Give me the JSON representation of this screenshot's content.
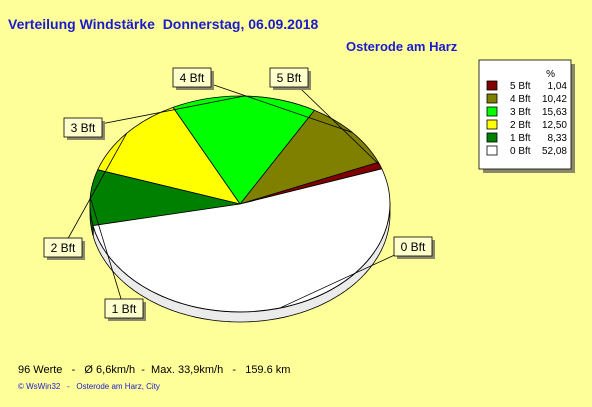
{
  "header": {
    "title": "Verteilung Windstärke  Donnerstag, 06.09.2018",
    "location": "Osterode am Harz"
  },
  "chart_data": {
    "type": "pie",
    "legend_header": "%",
    "legend_position": "top-right",
    "slices": [
      {
        "label": "5 Bft",
        "value": 1.04,
        "value_text": "1,04",
        "color": "#800000"
      },
      {
        "label": "4 Bft",
        "value": 10.42,
        "value_text": "10,42",
        "color": "#808000"
      },
      {
        "label": "3 Bft",
        "value": 15.63,
        "value_text": "15,63",
        "color": "#00ff00"
      },
      {
        "label": "2 Bft",
        "value": 12.5,
        "value_text": "12,50",
        "color": "#ffff00"
      },
      {
        "label": "1 Bft",
        "value": 8.33,
        "value_text": "8,33",
        "color": "#008000"
      },
      {
        "label": "0 Bft",
        "value": 52.08,
        "value_text": "52,08",
        "color": "#ffffff"
      }
    ]
  },
  "footer": {
    "stats": "96 Werte   -   Ø 6,6km/h  -  Max. 33,9km/h   -   159.6 km",
    "credit": "© WsWin32   -   Osterode am Harz, City"
  }
}
